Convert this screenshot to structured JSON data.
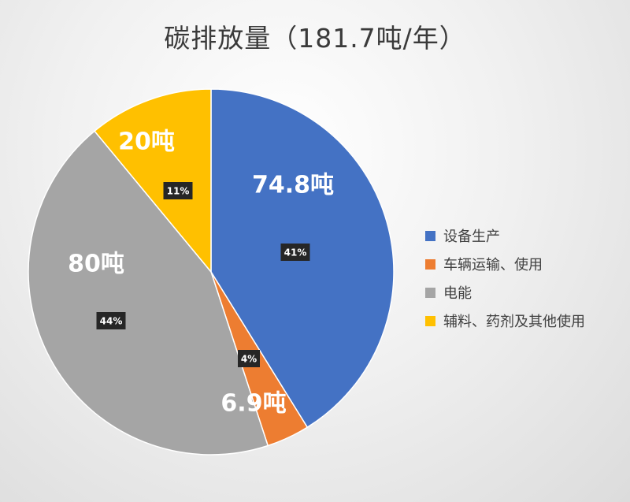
{
  "chart_data": {
    "type": "pie",
    "title": "碳排放量（181.7吨/年）",
    "categories": [
      "设备生产",
      "车辆运输、使用",
      "电能",
      "辅料、药剂及其他使用"
    ],
    "values": [
      74.8,
      6.9,
      80,
      20
    ],
    "value_labels": [
      "74.8吨",
      "6.9吨",
      "80吨",
      "20吨"
    ],
    "percent_labels": [
      "41%",
      "4%",
      "44%",
      "11%"
    ],
    "colors": [
      "#4472C4",
      "#ED7D31",
      "#A5A5A5",
      "#FFC000"
    ],
    "start": "top, clockwise",
    "legend_position": "right"
  }
}
